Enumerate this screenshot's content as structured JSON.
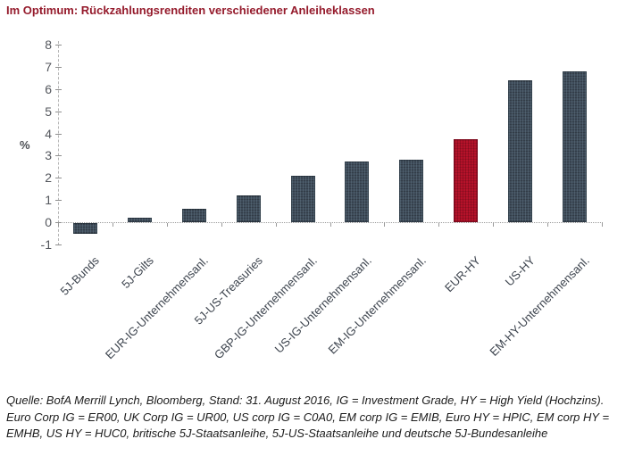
{
  "chart_data": {
    "type": "bar",
    "title": "Im Optimum: Rückzahlungsrenditen verschiedener Anleiheklassen",
    "categories": [
      "5J-Bunds",
      "5J-Gilts",
      "EUR-IG-Unternehmensanl.",
      "5J-US-Treasuries",
      "GBP-IG-Unternehmensanl.",
      "US-IG-Unternehmensanl.",
      "EM-IG-Unternehmensanl.",
      "EUR-HY",
      "US-HY",
      "EM-HY-Unternehmensanl."
    ],
    "values": [
      -0.5,
      0.2,
      0.6,
      1.2,
      2.1,
      2.75,
      2.8,
      3.75,
      6.4,
      6.8
    ],
    "xlabel": "",
    "ylabel": "%",
    "ylim": [
      -1,
      8
    ],
    "yticks": [
      8,
      7,
      6,
      5,
      4,
      3,
      2,
      1,
      0,
      -1
    ],
    "grid": false,
    "legend": false,
    "bar_color": "#3e4b59",
    "highlight_color": "#b5122a",
    "highlight_category": "EUR-HY",
    "highlight_index": 7,
    "title_color": "#951b2c"
  },
  "footer": {
    "text": "Quelle: BofA Merrill Lynch, Bloomberg, Stand: 31. August 2016, IG = Investment Grade, HY = High Yield (Hochzins). Euro Corp IG = ER00, UK Corp IG = UR00, US corp IG = C0A0, EM corp IG = EMIB, Euro HY = HPIC, EM corp HY = EMHB, US HY = HUC0, britische 5J-Staatsanleihe, 5J-US-Staatsanleihe und deutsche 5J-Bundesanleihe"
  }
}
